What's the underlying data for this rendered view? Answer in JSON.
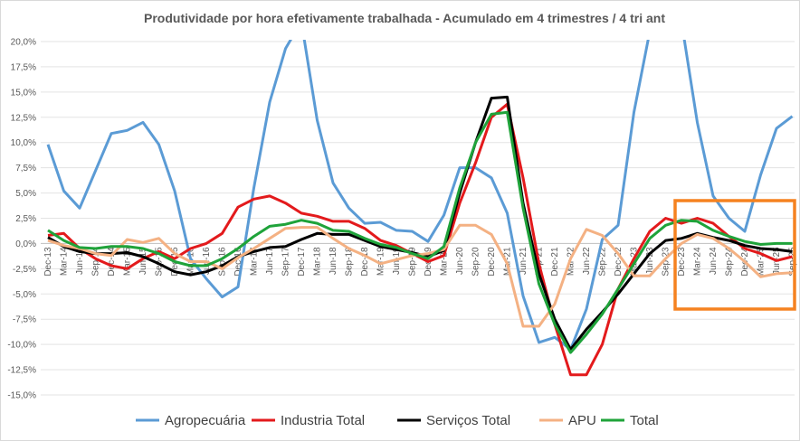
{
  "chart_data": {
    "type": "line",
    "title": "Produtividade por hora efetivamente trabalhada  - Acumulado em 4 trimestres / 4 tri ant",
    "xlabel": "",
    "ylabel": "",
    "ylim": [
      -15,
      20
    ],
    "yticks": [
      20,
      17.5,
      15,
      12.5,
      10,
      7.5,
      5,
      2.5,
      0,
      -2.5,
      -5,
      -7.5,
      -10,
      -12.5,
      -15
    ],
    "ytick_labels": [
      "20,0%",
      "17,5%",
      "15,0%",
      "12,5%",
      "10,0%",
      "7,5%",
      "5,0%",
      "2,5%",
      "0,0%",
      "-2,5%",
      "-5,0%",
      "-7,5%",
      "-10,0%",
      "-12,5%",
      "-15,0%"
    ],
    "grid": true,
    "legend_position": "bottom",
    "categories": [
      "Dec-13",
      "Mar-14",
      "Jun-14",
      "Sep-14",
      "Dec-14",
      "Mar-15",
      "Jun-15",
      "Sep-15",
      "Dec-15",
      "Mar-16",
      "Jun-16",
      "Sep-16",
      "Dec-16",
      "Mar-17",
      "Jun-17",
      "Sep-17",
      "Dec-17",
      "Mar-18",
      "Jun-18",
      "Sep-18",
      "Dec-18",
      "Mar-19",
      "Jun-19",
      "Sep-19",
      "Dec-19",
      "Mar-20",
      "Jun-20",
      "Sep-20",
      "Dec-20",
      "Mar-21",
      "Jun-21",
      "Sep-21",
      "Dec-21",
      "Mar-22",
      "Jun-22",
      "Sep-22",
      "Dec-22",
      "Mar-23",
      "Jun-23",
      "Sep-23",
      "Dec-23",
      "Mar-24",
      "Jun-24",
      "Sep-24",
      "Dec-24",
      "Mar-25",
      "Jun-25",
      "Sep-25"
    ],
    "series": [
      {
        "name": "Agropecuária",
        "color": "#5b9bd5",
        "values": [
          9.8,
          5.2,
          3.5,
          7.2,
          10.9,
          11.2,
          12.0,
          9.8,
          5.2,
          -1.5,
          -3.5,
          -5.3,
          -4.3,
          5.5,
          14.0,
          19.3,
          22.0,
          12.2,
          6.0,
          3.5,
          2.0,
          2.1,
          1.3,
          1.2,
          0.2,
          2.8,
          7.5,
          7.5,
          6.5,
          3.0,
          -5.2,
          -9.8,
          -9.3,
          -10.5,
          -6.5,
          0.4,
          1.8,
          13.0,
          21.0,
          25.0,
          22.0,
          12.0,
          4.7,
          2.5,
          1.2,
          6.8,
          11.4,
          12.6
        ]
      },
      {
        "name": "Industria Total",
        "color": "#e31a1c",
        "values": [
          0.8,
          1.0,
          -0.5,
          -1.5,
          -2.2,
          -2.5,
          -1.5,
          -0.8,
          -1.5,
          -0.5,
          0.0,
          1.0,
          3.6,
          4.4,
          4.7,
          4.0,
          3.0,
          2.7,
          2.2,
          2.2,
          1.5,
          0.3,
          -0.2,
          -1.0,
          -1.8,
          -1.2,
          4.0,
          8.0,
          12.5,
          13.8,
          6.5,
          -2.0,
          -8.0,
          -13.0,
          -13.0,
          -10.0,
          -4.5,
          -1.5,
          1.2,
          2.5,
          2.0,
          2.5,
          2.0,
          0.7,
          -0.5,
          -1.0,
          -1.7,
          -1.3
        ]
      },
      {
        "name": "Serviços Total",
        "color": "#000000",
        "values": [
          0.6,
          -0.3,
          -0.8,
          -1.0,
          -1.0,
          -0.9,
          -1.3,
          -2.0,
          -2.8,
          -3.1,
          -2.8,
          -2.2,
          -1.3,
          -0.8,
          -0.4,
          -0.3,
          0.4,
          1.0,
          0.9,
          0.9,
          0.3,
          -0.3,
          -0.6,
          -0.9,
          -1.3,
          -0.7,
          5.0,
          10.0,
          14.4,
          14.5,
          4.0,
          -3.0,
          -7.5,
          -10.5,
          -8.5,
          -6.8,
          -5.0,
          -3.0,
          -1.0,
          0.3,
          0.5,
          1.0,
          0.6,
          0.3,
          -0.2,
          -0.5,
          -0.6,
          -0.8
        ]
      },
      {
        "name": "APU",
        "color": "#f4b183",
        "values": [
          0.3,
          -0.2,
          -0.5,
          -1.0,
          -1.2,
          0.4,
          0.1,
          0.5,
          -1.0,
          -1.8,
          -1.8,
          -2.5,
          -1.4,
          -0.5,
          0.5,
          1.5,
          1.6,
          1.6,
          0.5,
          -0.5,
          -1.2,
          -2.0,
          -1.6,
          -1.2,
          -1.0,
          -0.6,
          1.8,
          1.8,
          0.9,
          -2.0,
          -8.2,
          -8.2,
          -6.0,
          -1.5,
          1.4,
          0.8,
          -1.0,
          -3.2,
          -3.2,
          -1.5,
          0.0,
          0.9,
          0.5,
          -0.5,
          -1.8,
          -3.3,
          -3.0,
          -2.9
        ]
      },
      {
        "name": "Total",
        "color": "#1fa33a",
        "values": [
          1.3,
          0.3,
          -0.4,
          -0.5,
          -0.3,
          -0.3,
          -0.5,
          -1.0,
          -1.8,
          -2.2,
          -2.2,
          -1.5,
          -0.5,
          0.7,
          1.7,
          1.9,
          2.3,
          2.0,
          1.3,
          1.2,
          0.5,
          -0.1,
          -0.4,
          -1.0,
          -1.5,
          -0.3,
          5.5,
          10.0,
          12.8,
          13.0,
          3.5,
          -4.0,
          -8.0,
          -10.8,
          -9.0,
          -7.0,
          -4.5,
          -2.0,
          0.5,
          1.8,
          2.3,
          2.2,
          1.3,
          0.7,
          0.2,
          -0.1,
          0.0,
          0.0
        ]
      }
    ],
    "annotations": [
      {
        "type": "highlight-rectangle",
        "color": "#f58220",
        "from": "Dec-23",
        "to": "Sep-25"
      }
    ]
  }
}
